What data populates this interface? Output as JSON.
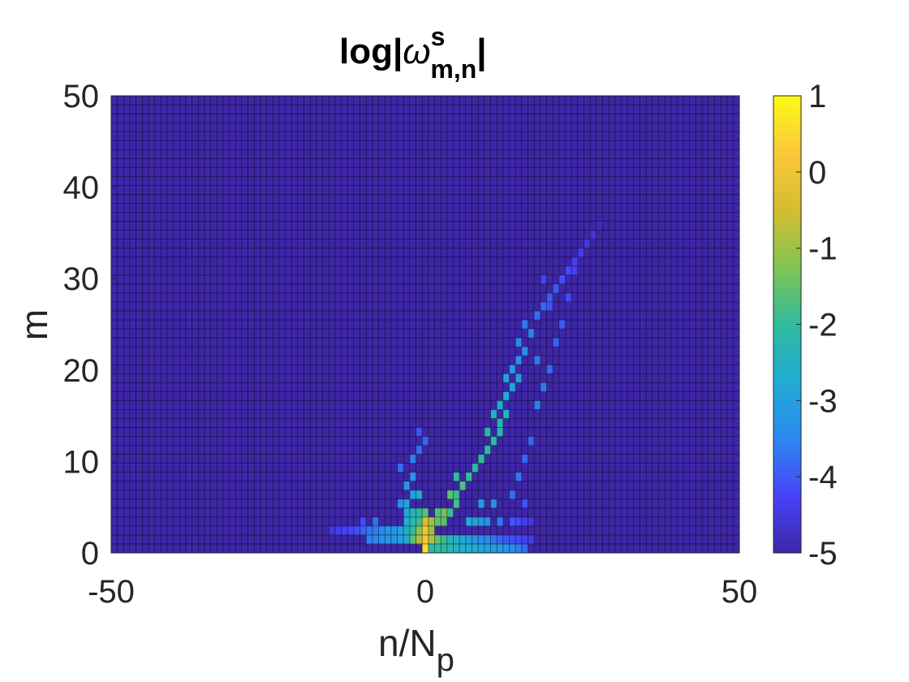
{
  "chart_data": {
    "type": "heatmap",
    "title": {
      "prefix": "log|",
      "symbol": "ω",
      "superscript": "s",
      "subscript": "m,n",
      "suffix": "|"
    },
    "xlabel": {
      "main": "n/N",
      "subscript": "p"
    },
    "ylabel": "m",
    "xlim": [
      -50,
      50
    ],
    "ylim": [
      0,
      50
    ],
    "xticks": [
      "-50",
      "0",
      "50"
    ],
    "yticks": [
      "0",
      "10",
      "20",
      "30",
      "40",
      "50"
    ],
    "grid": "cell edges drawn",
    "colormap": "parula",
    "clim": [
      -5,
      1
    ],
    "colorbar_ticks": [
      "1",
      "0",
      "-1",
      "-2",
      "-3",
      "-4",
      "-5"
    ],
    "colorbar_position": "right",
    "n_columns": 101,
    "n_rows": 51,
    "background_value": -5,
    "description_of_values": "sparse list of [n, m, log|omega|]; all other cells equal background_value",
    "cells": [
      [
        0,
        0,
        0.6
      ],
      [
        0,
        1,
        0.2
      ],
      [
        0,
        2,
        0.1
      ],
      [
        0,
        3,
        -0.3
      ],
      [
        -1,
        1,
        -0.8
      ],
      [
        -1,
        2,
        -1.2
      ],
      [
        1,
        1,
        -0.8
      ],
      [
        1,
        2,
        -1.0
      ],
      [
        1,
        3,
        -1.0
      ],
      [
        -2,
        1,
        -1.6
      ],
      [
        -2,
        2,
        -2.0
      ],
      [
        -3,
        1,
        -2.6
      ],
      [
        -3,
        2,
        -2.6
      ],
      [
        -4,
        1,
        -3.0
      ],
      [
        -4,
        2,
        -3.0
      ],
      [
        -5,
        1,
        -3.2
      ],
      [
        -5,
        2,
        -3.2
      ],
      [
        -6,
        1,
        -3.3
      ],
      [
        -6,
        2,
        -3.3
      ],
      [
        -7,
        1,
        -3.4
      ],
      [
        -7,
        2,
        -3.4
      ],
      [
        -8,
        1,
        -3.5
      ],
      [
        -8,
        2,
        -3.6
      ],
      [
        -9,
        1,
        -3.6
      ],
      [
        -9,
        2,
        -3.7
      ],
      [
        -10,
        2,
        -3.9
      ],
      [
        -11,
        2,
        -4.1
      ],
      [
        -12,
        2,
        -4.2
      ],
      [
        -13,
        2,
        -4.3
      ],
      [
        -14,
        2,
        -4.4
      ],
      [
        -15,
        2,
        -4.5
      ],
      [
        -8,
        3,
        -3.8
      ],
      [
        -10,
        3,
        -4.2
      ],
      [
        1,
        0,
        -2.2
      ],
      [
        2,
        0,
        -2.0
      ],
      [
        3,
        0,
        -2.2
      ],
      [
        4,
        0,
        -2.3
      ],
      [
        5,
        0,
        -2.5
      ],
      [
        6,
        0,
        -2.6
      ],
      [
        7,
        0,
        -2.7
      ],
      [
        8,
        0,
        -2.8
      ],
      [
        9,
        0,
        -2.9
      ],
      [
        10,
        0,
        -3.0
      ],
      [
        11,
        0,
        -3.1
      ],
      [
        12,
        0,
        -3.2
      ],
      [
        13,
        0,
        -3.3
      ],
      [
        14,
        0,
        -3.4
      ],
      [
        15,
        0,
        -3.6
      ],
      [
        16,
        0,
        -3.8
      ],
      [
        2,
        1,
        -1.5
      ],
      [
        3,
        1,
        -1.9
      ],
      [
        4,
        1,
        -2.3
      ],
      [
        5,
        1,
        -2.6
      ],
      [
        6,
        1,
        -2.8
      ],
      [
        7,
        1,
        -3.0
      ],
      [
        8,
        1,
        -3.2
      ],
      [
        9,
        1,
        -3.4
      ],
      [
        10,
        1,
        -3.5
      ],
      [
        11,
        1,
        -3.7
      ],
      [
        12,
        1,
        -3.9
      ],
      [
        13,
        1,
        -4.0
      ],
      [
        14,
        1,
        -4.1
      ],
      [
        15,
        1,
        -4.2
      ],
      [
        16,
        1,
        -4.3
      ],
      [
        17,
        1,
        -4.4
      ],
      [
        2,
        3,
        -1.5
      ],
      [
        3,
        3,
        -1.6
      ],
      [
        2,
        4,
        -1.7
      ],
      [
        3,
        4,
        -1.4
      ],
      [
        4,
        4,
        -1.9
      ],
      [
        5,
        5,
        -1.8
      ],
      [
        4,
        6,
        -1.6
      ],
      [
        5,
        6,
        -1.9
      ],
      [
        6,
        7,
        -1.7
      ],
      [
        5,
        8,
        -2.0
      ],
      [
        7,
        8,
        -2.0
      ],
      [
        8,
        9,
        -2.1
      ],
      [
        9,
        10,
        -2.0
      ],
      [
        10,
        11,
        -2.2
      ],
      [
        11,
        12,
        -2.1
      ],
      [
        10,
        13,
        -2.3
      ],
      [
        12,
        13,
        -2.3
      ],
      [
        12,
        14,
        -2.4
      ],
      [
        11,
        15,
        -2.6
      ],
      [
        13,
        15,
        -2.5
      ],
      [
        12,
        16,
        -2.7
      ],
      [
        13,
        17,
        -2.8
      ],
      [
        14,
        18,
        -2.9
      ],
      [
        13,
        19,
        -3.0
      ],
      [
        15,
        19,
        -3.0
      ],
      [
        14,
        20,
        -3.2
      ],
      [
        15,
        21,
        -3.3
      ],
      [
        16,
        22,
        -3.4
      ],
      [
        15,
        23,
        -3.5
      ],
      [
        17,
        24,
        -3.6
      ],
      [
        16,
        25,
        -3.7
      ],
      [
        18,
        26,
        -3.8
      ],
      [
        19,
        27,
        -3.9
      ],
      [
        20,
        28,
        -4.0
      ],
      [
        21,
        29,
        -4.0
      ],
      [
        22,
        30,
        -4.1
      ],
      [
        23,
        31,
        -4.2
      ],
      [
        24,
        32,
        -4.3
      ],
      [
        25,
        33,
        -4.4
      ],
      [
        26,
        34,
        -4.5
      ],
      [
        27,
        35,
        -4.6
      ],
      [
        28,
        36,
        -4.8
      ],
      [
        -3,
        3,
        -2.6
      ],
      [
        -2,
        3,
        -2.2
      ],
      [
        -1,
        3,
        -1.9
      ],
      [
        -3,
        4,
        -2.8
      ],
      [
        -2,
        4,
        -2.4
      ],
      [
        -1,
        4,
        -2.2
      ],
      [
        0,
        4,
        -1.6
      ],
      [
        -4,
        5,
        -3.4
      ],
      [
        -3,
        5,
        -2.9
      ],
      [
        -2,
        6,
        -3.0
      ],
      [
        -1,
        6,
        -2.7
      ],
      [
        -3,
        7,
        -3.2
      ],
      [
        -2,
        8,
        -3.3
      ],
      [
        -4,
        9,
        -3.8
      ],
      [
        -2,
        10,
        -3.6
      ],
      [
        -1,
        11,
        -3.8
      ],
      [
        0,
        12,
        -3.9
      ],
      [
        -1,
        13,
        -4.1
      ],
      [
        7,
        3,
        -2.8
      ],
      [
        8,
        3,
        -3.0
      ],
      [
        9,
        3,
        -3.2
      ],
      [
        10,
        3,
        -3.4
      ],
      [
        12,
        3,
        -3.7
      ],
      [
        14,
        3,
        -4.0
      ],
      [
        15,
        3,
        -4.2
      ],
      [
        16,
        3,
        -4.4
      ],
      [
        17,
        3,
        -4.5
      ],
      [
        9,
        5,
        -3.1
      ],
      [
        11,
        5,
        -3.4
      ],
      [
        14,
        6,
        -3.8
      ],
      [
        16,
        5,
        -4.1
      ],
      [
        15,
        8,
        -3.7
      ],
      [
        16,
        10,
        -3.9
      ],
      [
        17,
        12,
        -3.9
      ],
      [
        18,
        16,
        -3.6
      ],
      [
        19,
        18,
        -3.7
      ],
      [
        20,
        20,
        -3.8
      ],
      [
        18,
        21,
        -3.7
      ],
      [
        21,
        23,
        -3.9
      ],
      [
        22,
        25,
        -4.0
      ],
      [
        20,
        27,
        -4.1
      ],
      [
        23,
        28,
        -4.2
      ],
      [
        19,
        30,
        -4.3
      ],
      [
        24,
        31,
        -4.3
      ]
    ]
  }
}
